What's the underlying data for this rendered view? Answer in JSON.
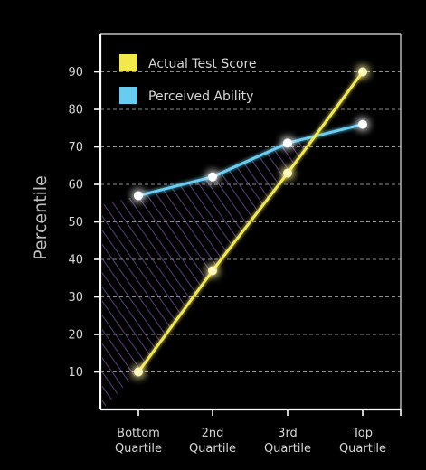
{
  "chart_data": {
    "type": "line",
    "title": "",
    "xlabel": "",
    "ylabel": "Percentile",
    "ylim": [
      0,
      95
    ],
    "y_ticks": [
      10,
      20,
      30,
      40,
      50,
      60,
      70,
      80,
      90
    ],
    "grid": "horizontal-dashed",
    "legend_position": "top-left",
    "categories": [
      [
        "Bottom",
        "Quartile"
      ],
      [
        "2nd",
        "Quartile"
      ],
      [
        "3rd",
        "Quartile"
      ],
      [
        "Top",
        "Quartile"
      ]
    ],
    "series": [
      {
        "name": "Actual Test Score",
        "color": "#f2e84b",
        "values": [
          10,
          37,
          63,
          90
        ]
      },
      {
        "name": "Perceived Ability",
        "color": "#67cdf0",
        "values": [
          57,
          62,
          71,
          76
        ]
      }
    ],
    "gap_shading": "purple-diagonal-hatch"
  }
}
